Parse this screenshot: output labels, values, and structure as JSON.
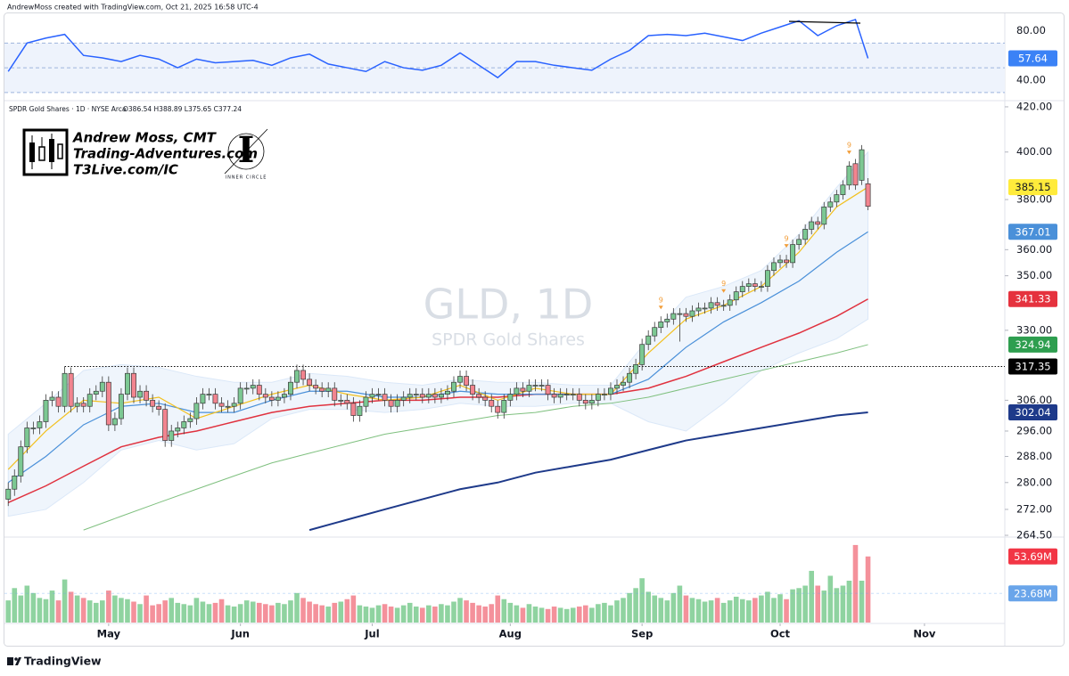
{
  "header": "AndrewMoss created with TradingView.com, Oct 21, 2025 16:58 UTC-4",
  "branding": {
    "name": "Andrew Moss, CMT",
    "site": "Trading-Adventures.com",
    "link": "T3Live.com/IC",
    "badge_letter": "I",
    "badge": "INNER CIRCLE"
  },
  "footer": "TradingView",
  "chart_data": [
    {
      "type": "candlestick",
      "legend_symbol": "SPDR Gold Shares · 1D · NYSE Arca",
      "legend_ohlc": "O386.54 H388.89 L375.65 C377.24",
      "watermark": "GLD, 1D",
      "watermark_subtitle": "SPDR Gold Shares",
      "log_scale": true,
      "ylim": [
        264,
        422
      ],
      "yticks": [
        {
          "value": 420,
          "label": "420.00"
        },
        {
          "value": 400,
          "label": "400.00"
        },
        {
          "value": 380,
          "label": "380.00"
        },
        {
          "value": 360,
          "label": "360.00"
        },
        {
          "value": 350,
          "label": "350.00"
        },
        {
          "value": 330,
          "label": "330.00"
        },
        {
          "value": 306,
          "label": "306.00"
        },
        {
          "value": 296,
          "label": "296.00"
        },
        {
          "value": 288,
          "label": "288.00"
        },
        {
          "value": 280,
          "label": "280.00"
        },
        {
          "value": 272,
          "label": "272.00"
        },
        {
          "value": 264.5,
          "label": "264.50"
        }
      ],
      "xlim": [
        -0.6,
        158.8
      ],
      "xticks": [
        {
          "value": 16,
          "label": "May"
        },
        {
          "value": 37,
          "label": "Jun"
        },
        {
          "value": 58,
          "label": "Jul"
        },
        {
          "value": 80,
          "label": "Aug"
        },
        {
          "value": 101,
          "label": "Sep"
        },
        {
          "value": 123,
          "label": "Oct"
        },
        {
          "value": 146,
          "label": "Nov"
        }
      ],
      "up_color": "#7cc893",
      "down_color": "#f2848f",
      "open": [
        275,
        278,
        282,
        291,
        297,
        297,
        299,
        306,
        307,
        304,
        315,
        304,
        305,
        304,
        308,
        309,
        312,
        298,
        300,
        308,
        315,
        307,
        309,
        306,
        304,
        303,
        293,
        296,
        297,
        299,
        300,
        305,
        308,
        308,
        305,
        304,
        304,
        305,
        310,
        310,
        311,
        308,
        307,
        306,
        307,
        308,
        312,
        316,
        313,
        311,
        310,
        309,
        310,
        306,
        306,
        305,
        301,
        304,
        307,
        308,
        308,
        306,
        304,
        306,
        307,
        308,
        308,
        307,
        308,
        307,
        308,
        309,
        312,
        314,
        311,
        308,
        307,
        306,
        304,
        302,
        306,
        308,
        310,
        309,
        311,
        311,
        311,
        308,
        307,
        308,
        308,
        308,
        306,
        305,
        306,
        308,
        308,
        310,
        311,
        312,
        315,
        318,
        325,
        328,
        331,
        333,
        334,
        336,
        336,
        335,
        337,
        338,
        338,
        340,
        339,
        339,
        341,
        344,
        346,
        347,
        346,
        346,
        352,
        355,
        356,
        355,
        362,
        364,
        368,
        371,
        370,
        377,
        379,
        382,
        386,
        395,
        388,
        386.54
      ],
      "high": [
        280,
        284,
        293,
        299,
        299,
        301,
        308,
        309,
        309,
        317.35,
        317,
        307,
        307,
        310,
        311,
        314,
        314,
        302,
        310,
        317,
        317,
        311,
        311,
        308,
        306,
        305,
        298,
        299,
        301,
        302,
        307,
        310,
        310,
        310,
        307,
        306,
        307,
        312,
        312,
        313,
        313,
        310,
        309,
        309,
        310,
        314,
        318,
        318,
        315,
        313,
        312,
        312,
        312,
        308,
        308,
        307,
        306,
        309,
        310,
        310,
        310,
        308,
        308,
        309,
        310,
        310,
        310,
        310,
        310,
        310,
        311,
        314,
        316,
        316,
        313,
        310,
        309,
        308,
        306,
        308,
        310,
        312,
        312,
        313,
        313,
        313,
        313,
        310,
        310,
        310,
        310,
        310,
        308,
        308,
        310,
        310,
        312,
        313,
        314,
        317,
        320,
        327,
        330,
        333,
        335,
        336,
        338,
        338,
        338,
        339,
        340,
        340,
        342,
        342,
        341,
        343,
        346,
        348,
        349,
        349,
        348,
        354,
        357,
        358,
        358,
        364,
        366,
        370,
        373,
        373,
        379,
        381,
        384,
        388,
        396,
        397,
        403,
        388.89
      ],
      "low": [
        273,
        276,
        280,
        289,
        295,
        295,
        297,
        304,
        302,
        302,
        302,
        302,
        302,
        302,
        306,
        307,
        296,
        296,
        298,
        306,
        305,
        305,
        304,
        302,
        301,
        291,
        291,
        294,
        295,
        297,
        298,
        303,
        306,
        303,
        302,
        302,
        302,
        303,
        308,
        308,
        306,
        305,
        304,
        304,
        305,
        306,
        310,
        311,
        309,
        308,
        307,
        307,
        304,
        304,
        303,
        299,
        299,
        302,
        305,
        306,
        304,
        302,
        302,
        304,
        305,
        306,
        305,
        305,
        305,
        305,
        306,
        307,
        310,
        309,
        306,
        305,
        304,
        302,
        300,
        300,
        304,
        306,
        307,
        307,
        309,
        309,
        306,
        305,
        305,
        306,
        306,
        304,
        303,
        303,
        304,
        306,
        306,
        308,
        309,
        310,
        313,
        316,
        323,
        326,
        329,
        331,
        332,
        326,
        333,
        333,
        335,
        336,
        336,
        337,
        337,
        337,
        339,
        342,
        344,
        344,
        344,
        344,
        350,
        353,
        353,
        353,
        360,
        362,
        366,
        368,
        368,
        375,
        377,
        380,
        384,
        384,
        386,
        375.65
      ],
      "close": [
        278,
        282,
        291,
        297,
        297,
        299,
        306,
        307,
        304,
        315,
        304,
        305,
        304,
        308,
        309,
        312,
        298,
        300,
        308,
        315,
        307,
        309,
        306,
        304,
        303,
        293,
        296,
        297,
        299,
        300,
        305,
        308,
        308,
        305,
        304,
        304,
        305,
        310,
        310,
        311,
        308,
        307,
        306,
        307,
        308,
        312,
        316,
        313,
        311,
        310,
        309,
        310,
        306,
        306,
        305,
        301,
        304,
        307,
        308,
        308,
        306,
        304,
        306,
        307,
        308,
        308,
        307,
        308,
        307,
        308,
        309,
        312,
        314,
        311,
        308,
        307,
        306,
        304,
        302,
        306,
        308,
        310,
        309,
        311,
        311,
        311,
        308,
        307,
        308,
        308,
        308,
        306,
        305,
        306,
        308,
        308,
        310,
        311,
        312,
        315,
        318,
        325,
        328,
        331,
        333,
        334,
        336,
        336,
        335,
        337,
        338,
        338,
        340,
        339,
        339,
        341,
        344,
        346,
        347,
        346,
        346,
        352,
        355,
        356,
        355,
        362,
        364,
        368,
        371,
        370,
        377,
        379,
        382,
        386,
        394,
        386,
        401,
        377.24
      ],
      "band": {
        "color": "#dbe8f8",
        "x": [
          0,
          6,
          12,
          18,
          24,
          30,
          36,
          42,
          48,
          54,
          60,
          66,
          72,
          78,
          84,
          90,
          96,
          102,
          108,
          114,
          120,
          126,
          132,
          137
        ],
        "upper": [
          295,
          305,
          316,
          318,
          317,
          314,
          312,
          312,
          315,
          314,
          312,
          311,
          313,
          312,
          312,
          311,
          311,
          327,
          342,
          346,
          352,
          366,
          385,
          400
        ],
        "lower": [
          270,
          272,
          280,
          290,
          293,
          290,
          292,
          300,
          303,
          303,
          302,
          303,
          305,
          304,
          304,
          305,
          305,
          299,
          296,
          305,
          316,
          322,
          327,
          334
        ]
      },
      "lines": [
        {
          "color": "#1e3a8a",
          "width": 2,
          "x": [
            0,
            6,
            12,
            18,
            24,
            30,
            36,
            42,
            48,
            54,
            60,
            66,
            72,
            78,
            84,
            90,
            96,
            102,
            108,
            114,
            120,
            126,
            132,
            137
          ],
          "values": [
            null,
            null,
            null,
            null,
            null,
            null,
            null,
            null,
            266,
            269,
            272,
            275,
            278,
            280,
            283,
            285,
            287,
            290,
            293,
            295,
            297,
            299,
            301,
            302.04
          ]
        },
        {
          "color": "#7fc07f",
          "width": 1,
          "x": [
            0,
            6,
            12,
            18,
            24,
            30,
            36,
            42,
            48,
            54,
            60,
            66,
            72,
            78,
            84,
            90,
            96,
            102,
            108,
            114,
            120,
            126,
            132,
            137
          ],
          "values": [
            null,
            null,
            266,
            270,
            274,
            278,
            282,
            286,
            289,
            292,
            295,
            297,
            299,
            301,
            302,
            304,
            305,
            307,
            310,
            313,
            316,
            319,
            322,
            324.94
          ]
        },
        {
          "color": "#e0323f",
          "width": 1.5,
          "x": [
            0,
            6,
            12,
            18,
            24,
            30,
            36,
            42,
            48,
            54,
            60,
            66,
            72,
            78,
            84,
            90,
            96,
            102,
            108,
            114,
            120,
            126,
            132,
            137
          ],
          "values": [
            274,
            279,
            285,
            291,
            294,
            296,
            299,
            302,
            304,
            305,
            306,
            306,
            307,
            307,
            308,
            308,
            308,
            310,
            314,
            319,
            324,
            329,
            335,
            341.33
          ]
        },
        {
          "color": "#4a90d9",
          "width": 1.2,
          "x": [
            0,
            6,
            12,
            18,
            24,
            30,
            36,
            42,
            48,
            54,
            60,
            66,
            72,
            78,
            84,
            90,
            96,
            102,
            108,
            114,
            120,
            126,
            132,
            137
          ],
          "values": [
            280,
            288,
            298,
            304,
            305,
            302,
            302,
            306,
            309,
            309,
            307,
            307,
            309,
            308,
            308,
            308,
            308,
            313,
            324,
            333,
            340,
            348,
            359,
            367.01
          ]
        },
        {
          "color": "#f2c01e",
          "width": 1.2,
          "x": [
            0,
            6,
            12,
            18,
            24,
            30,
            36,
            42,
            48,
            54,
            60,
            66,
            72,
            78,
            84,
            90,
            96,
            102,
            108,
            114,
            120,
            126,
            132,
            137
          ],
          "values": [
            284,
            296,
            306,
            305,
            307,
            300,
            304,
            308,
            311,
            308,
            306,
            307,
            311,
            306,
            310,
            308,
            308,
            322,
            334,
            339,
            346,
            359,
            377,
            385.15
          ]
        }
      ],
      "level": {
        "value": 317.35,
        "start": 9,
        "color": "#000000"
      },
      "signals": {
        "bars": [
          104,
          114,
          124,
          134
        ],
        "label": "9",
        "color": "#f29d38"
      }
    },
    {
      "type": "bar",
      "ylim": [
        0,
        68
      ],
      "last_label": "53.69M",
      "values": [
        18,
        28,
        22,
        30,
        24,
        20,
        19,
        26,
        18,
        35,
        25,
        22,
        20,
        18,
        16,
        18,
        26,
        22,
        20,
        19,
        17,
        15,
        22,
        14,
        15,
        18,
        20,
        16,
        15,
        14,
        20,
        17,
        15,
        16,
        19,
        14,
        13,
        15,
        18,
        17,
        16,
        15,
        14,
        16,
        15,
        18,
        24,
        20,
        17,
        15,
        14,
        13,
        16,
        17,
        19,
        22,
        14,
        13,
        12,
        14,
        15,
        13,
        12,
        14,
        16,
        13,
        12,
        14,
        13,
        15,
        14,
        17,
        20,
        18,
        16,
        14,
        13,
        15,
        22,
        19,
        16,
        14,
        12,
        15,
        13,
        12,
        11,
        13,
        12,
        11,
        12,
        13,
        14,
        12,
        15,
        16,
        14,
        18,
        20,
        24,
        28,
        36,
        25,
        22,
        20,
        18,
        24,
        30,
        22,
        20,
        19,
        17,
        18,
        20,
        16,
        18,
        21,
        19,
        18,
        20,
        22,
        25,
        20,
        23,
        19,
        27,
        28,
        30,
        42,
        30,
        26,
        38,
        28,
        30,
        34,
        63,
        34,
        53.69
      ],
      "ma": {
        "value": 23.68,
        "label": "23.68M",
        "color": "#6aa5ea"
      }
    },
    {
      "type": "line",
      "color": "#2962ff",
      "ylim": [
        27,
        94
      ],
      "yticks": [
        {
          "value": 80,
          "label": "80.00"
        },
        {
          "value": 40,
          "label": "40.00"
        }
      ],
      "levels": [
        70,
        50,
        30
      ],
      "x": [
        0,
        3,
        6,
        9,
        12,
        15,
        18,
        21,
        24,
        27,
        30,
        33,
        36,
        39,
        42,
        45,
        48,
        51,
        54,
        57,
        60,
        63,
        66,
        69,
        72,
        75,
        78,
        81,
        84,
        87,
        90,
        93,
        96,
        99,
        102,
        105,
        108,
        111,
        114,
        117,
        120,
        123,
        126,
        129,
        132,
        135,
        137
      ],
      "values": [
        47,
        70,
        74,
        77,
        60,
        58,
        55,
        60,
        57,
        50,
        57,
        54,
        55,
        56,
        52,
        58,
        61,
        53,
        50,
        47,
        55,
        50,
        48,
        52,
        62,
        52,
        42,
        55,
        55,
        52,
        50,
        48,
        57,
        64,
        76,
        77,
        76,
        78,
        75,
        72,
        78,
        83,
        88,
        76,
        84,
        89,
        57.64
      ]
    }
  ]
}
